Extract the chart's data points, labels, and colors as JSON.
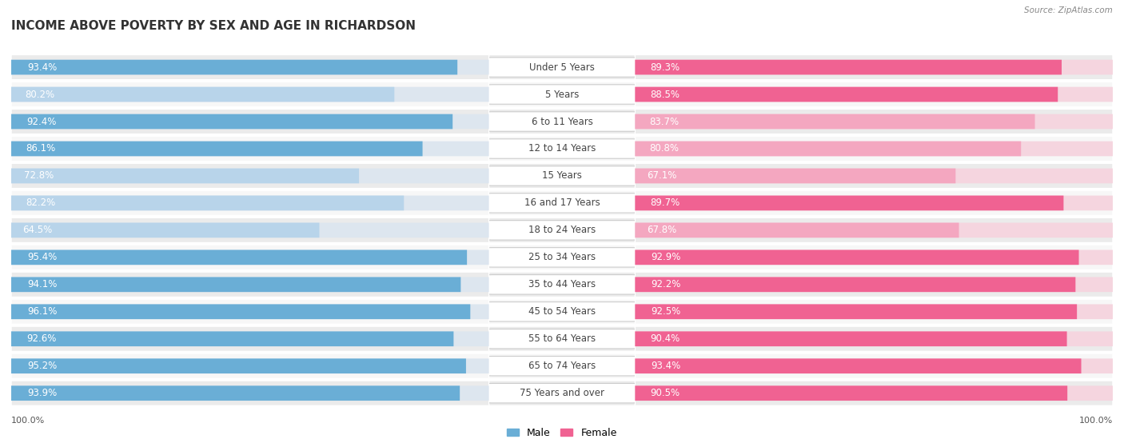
{
  "title": "INCOME ABOVE POVERTY BY SEX AND AGE IN RICHARDSON",
  "source": "Source: ZipAtlas.com",
  "categories": [
    "Under 5 Years",
    "5 Years",
    "6 to 11 Years",
    "12 to 14 Years",
    "15 Years",
    "16 and 17 Years",
    "18 to 24 Years",
    "25 to 34 Years",
    "35 to 44 Years",
    "45 to 54 Years",
    "55 to 64 Years",
    "65 to 74 Years",
    "75 Years and over"
  ],
  "male_values": [
    93.4,
    80.2,
    92.4,
    86.1,
    72.8,
    82.2,
    64.5,
    95.4,
    94.1,
    96.1,
    92.6,
    95.2,
    93.9
  ],
  "female_values": [
    89.3,
    88.5,
    83.7,
    80.8,
    67.1,
    89.7,
    67.8,
    92.9,
    92.2,
    92.5,
    90.4,
    93.4,
    90.5
  ],
  "male_color_dark": "#6aaed6",
  "male_color_light": "#b8d4ea",
  "female_color_dark": "#f06292",
  "female_color_light": "#f4a7c0",
  "row_color_even": "#ebebeb",
  "row_color_odd": "#f7f7f7",
  "bar_bg_color": "#dde6ef",
  "bar_bg_color_female": "#f5d5df",
  "title_fontsize": 11,
  "label_fontsize": 8.5,
  "cat_fontsize": 8.5,
  "axis_max": 100.0,
  "legend_male": "Male",
  "legend_female": "Female",
  "male_threshold": 85.0,
  "female_threshold": 85.0
}
